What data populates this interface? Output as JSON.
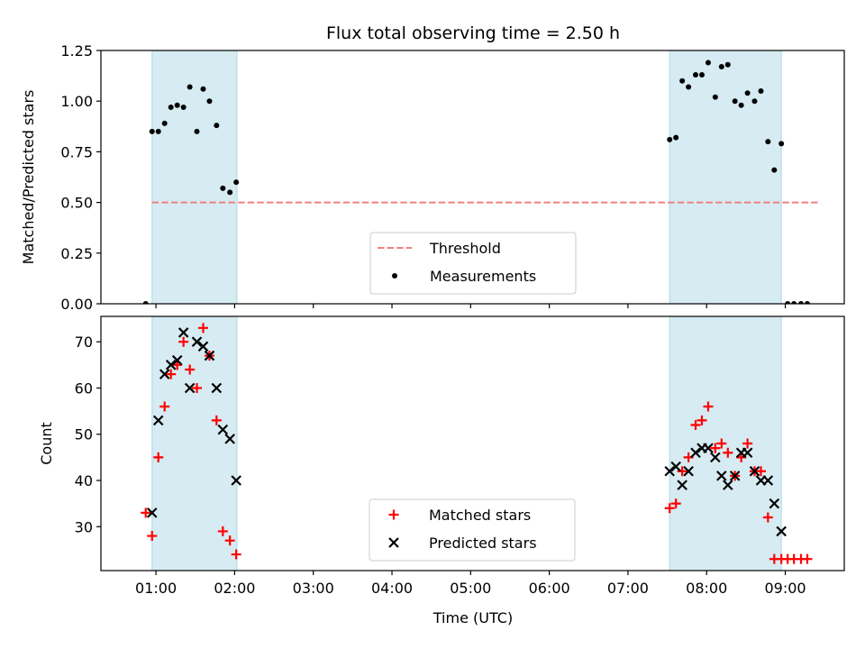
{
  "figure": {
    "title": "Flux total observing time = 2.50 h",
    "xlabel": "Time (UTC)",
    "colors": {
      "band": "#add8e6",
      "threshold": "#f08080",
      "measurement": "#000000",
      "matched": "#ff0000",
      "predicted": "#000000"
    }
  },
  "chart_data": [
    {
      "type": "scatter",
      "title": "Flux total observing time = 2.50 h",
      "xlabel": "",
      "ylabel": "Matched/Predicted stars",
      "x_unit": "hours UTC",
      "xlim": [
        0.3,
        9.75
      ],
      "ylim": [
        0,
        1.25
      ],
      "yticks": [
        0.0,
        0.25,
        0.5,
        0.75,
        1.0,
        1.25
      ],
      "ytick_labels": [
        "0.00",
        "0.25",
        "0.50",
        "0.75",
        "1.00",
        "1.25"
      ],
      "shaded_intervals": [
        [
          0.95,
          2.03
        ],
        [
          7.53,
          8.95
        ]
      ],
      "legend": {
        "position": "bottom-center",
        "entries": [
          "Threshold",
          "Measurements"
        ]
      },
      "series": [
        {
          "name": "Threshold",
          "kind": "dashed-line",
          "x": [
            0.95,
            9.45
          ],
          "y": [
            0.5,
            0.5
          ]
        },
        {
          "name": "Measurements",
          "kind": "dot",
          "x": [
            0.87,
            0.95,
            1.03,
            1.11,
            1.19,
            1.27,
            1.35,
            1.43,
            1.52,
            1.6,
            1.68,
            1.77,
            1.85,
            1.94,
            2.02,
            7.53,
            7.61,
            7.69,
            7.77,
            7.86,
            7.94,
            8.02,
            8.11,
            8.19,
            8.27,
            8.36,
            8.44,
            8.52,
            8.61,
            8.69,
            8.78,
            8.86,
            8.95,
            9.03,
            9.11,
            9.2,
            9.28
          ],
          "y": [
            0.0,
            0.85,
            0.85,
            0.89,
            0.97,
            0.98,
            0.97,
            1.07,
            0.85,
            1.06,
            1.0,
            0.88,
            0.57,
            0.55,
            0.6,
            0.81,
            0.82,
            1.1,
            1.07,
            1.13,
            1.13,
            1.19,
            1.02,
            1.17,
            1.18,
            1.0,
            0.98,
            1.04,
            1.0,
            1.05,
            0.8,
            0.66,
            0.79,
            0.0,
            0.0,
            0.0,
            0.0
          ]
        }
      ]
    },
    {
      "type": "scatter",
      "xlabel": "Time (UTC)",
      "ylabel": "Count",
      "x_unit": "hours UTC",
      "xlim": [
        0.3,
        9.75
      ],
      "ylim": [
        20.5,
        75.5
      ],
      "yticks": [
        30,
        40,
        50,
        60,
        70
      ],
      "ytick_labels": [
        "30",
        "40",
        "50",
        "60",
        "70"
      ],
      "xticks": [
        1,
        2,
        3,
        4,
        5,
        6,
        7,
        8,
        9
      ],
      "xtick_labels": [
        "01:00",
        "02:00",
        "03:00",
        "04:00",
        "05:00",
        "06:00",
        "07:00",
        "08:00",
        "09:00"
      ],
      "shaded_intervals": [
        [
          0.95,
          2.03
        ],
        [
          7.53,
          8.95
        ]
      ],
      "legend": {
        "position": "bottom-center",
        "entries": [
          "Matched stars",
          "Predicted stars"
        ]
      },
      "series": [
        {
          "name": "Matched stars",
          "kind": "plus",
          "x": [
            0.87,
            0.95,
            1.03,
            1.11,
            1.19,
            1.27,
            1.35,
            1.43,
            1.52,
            1.6,
            1.68,
            1.77,
            1.85,
            1.94,
            2.02,
            7.53,
            7.61,
            7.69,
            7.77,
            7.86,
            7.94,
            8.02,
            8.11,
            8.19,
            8.27,
            8.36,
            8.44,
            8.52,
            8.61,
            8.69,
            8.78,
            8.86,
            8.95,
            9.03,
            9.11,
            9.2,
            9.28
          ],
          "y": [
            33,
            28,
            45,
            56,
            63,
            65,
            70,
            64,
            60,
            73,
            67,
            53,
            29,
            27,
            24,
            34,
            35,
            42,
            45,
            52,
            53,
            56,
            47,
            48,
            46,
            41,
            45,
            48,
            42,
            42,
            32,
            23,
            23,
            23,
            23,
            23,
            23
          ]
        },
        {
          "name": "Predicted stars",
          "kind": "cross",
          "x": [
            0.95,
            1.03,
            1.11,
            1.19,
            1.27,
            1.35,
            1.43,
            1.52,
            1.6,
            1.68,
            1.77,
            1.85,
            1.94,
            2.02,
            7.53,
            7.61,
            7.69,
            7.77,
            7.86,
            7.94,
            8.02,
            8.11,
            8.19,
            8.27,
            8.36,
            8.44,
            8.52,
            8.61,
            8.69,
            8.78,
            8.86,
            8.95
          ],
          "y": [
            33,
            53,
            63,
            65,
            66,
            72,
            60,
            70,
            69,
            67,
            60,
            51,
            49,
            40,
            42,
            43,
            39,
            42,
            46,
            47,
            47,
            45,
            41,
            39,
            41,
            46,
            46,
            42,
            40,
            40,
            35,
            29
          ]
        }
      ]
    }
  ]
}
